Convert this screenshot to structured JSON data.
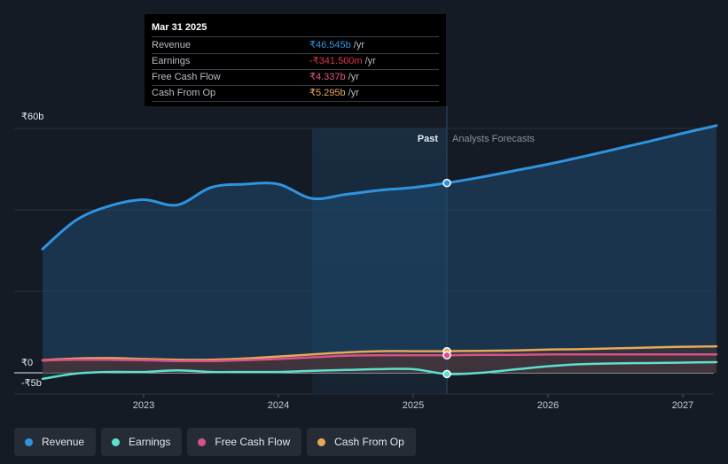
{
  "tooltip": {
    "date": "Mar 31 2025",
    "rows": [
      {
        "label": "Revenue",
        "value": "₹46.545b",
        "unit": "/yr",
        "color": "#2e94e0"
      },
      {
        "label": "Earnings",
        "value": "-₹341.500m",
        "unit": "/yr",
        "color": "#e0364f"
      },
      {
        "label": "Free Cash Flow",
        "value": "₹4.337b",
        "unit": "/yr",
        "color": "#e0578a"
      },
      {
        "label": "Cash From Op",
        "value": "₹5.295b",
        "unit": "/yr",
        "color": "#e8a85a"
      }
    ]
  },
  "labels": {
    "past": "Past",
    "forecast": "Analysts Forecasts"
  },
  "legend": [
    {
      "label": "Revenue",
      "color": "#2e94e0"
    },
    {
      "label": "Earnings",
      "color": "#5ce0d0"
    },
    {
      "label": "Free Cash Flow",
      "color": "#d9518a"
    },
    {
      "label": "Cash From Op",
      "color": "#e8a85a"
    }
  ],
  "chart_data": {
    "type": "line",
    "y_unit": "₹ billions",
    "ylim": [
      -5,
      60
    ],
    "y_ticks": [
      {
        "value": 60,
        "label": "₹60b"
      },
      {
        "value": 0,
        "label": "₹0"
      },
      {
        "value": -5,
        "label": "-₹5b"
      }
    ],
    "x_ticks": [
      {
        "value": 2023.0,
        "label": "2023"
      },
      {
        "value": 2024.0,
        "label": "2024"
      },
      {
        "value": 2025.0,
        "label": "2025"
      },
      {
        "value": 2026.0,
        "label": "2026"
      },
      {
        "value": 2027.0,
        "label": "2027"
      }
    ],
    "xlim": [
      2022.0,
      2027.25
    ],
    "past_start": 2024.25,
    "divider": 2025.25,
    "series": [
      {
        "name": "Revenue",
        "color": "#2e94e0",
        "points": [
          [
            2022.25,
            30.4
          ],
          [
            2022.5,
            37.5
          ],
          [
            2022.75,
            41.0
          ],
          [
            2023.0,
            42.5
          ],
          [
            2023.25,
            41.2
          ],
          [
            2023.5,
            45.5
          ],
          [
            2023.75,
            46.3
          ],
          [
            2024.0,
            46.3
          ],
          [
            2024.25,
            42.8
          ],
          [
            2024.5,
            43.8
          ],
          [
            2024.75,
            44.8
          ],
          [
            2025.0,
            45.5
          ],
          [
            2025.25,
            46.6
          ],
          [
            2025.5,
            48.0
          ],
          [
            2025.75,
            49.6
          ],
          [
            2026.0,
            51.2
          ],
          [
            2026.25,
            53.0
          ],
          [
            2026.5,
            54.9
          ],
          [
            2026.75,
            56.8
          ],
          [
            2027.0,
            58.8
          ],
          [
            2027.25,
            60.7
          ]
        ]
      },
      {
        "name": "Earnings",
        "color": "#5ce0d0",
        "points": [
          [
            2022.25,
            -1.5
          ],
          [
            2022.5,
            -0.2
          ],
          [
            2022.75,
            0.2
          ],
          [
            2023.0,
            0.2
          ],
          [
            2023.25,
            0.6
          ],
          [
            2023.5,
            0.2
          ],
          [
            2023.75,
            0.2
          ],
          [
            2024.0,
            0.2
          ],
          [
            2024.25,
            0.5
          ],
          [
            2024.5,
            0.7
          ],
          [
            2024.75,
            0.9
          ],
          [
            2025.0,
            0.9
          ],
          [
            2025.25,
            -0.3
          ],
          [
            2025.5,
            0.0
          ],
          [
            2025.75,
            0.8
          ],
          [
            2026.0,
            1.6
          ],
          [
            2026.25,
            2.1
          ],
          [
            2026.5,
            2.3
          ],
          [
            2026.75,
            2.4
          ],
          [
            2027.0,
            2.5
          ],
          [
            2027.25,
            2.6
          ]
        ]
      },
      {
        "name": "Free Cash Flow",
        "color": "#d9518a",
        "points": [
          [
            2022.25,
            3.0
          ],
          [
            2022.5,
            3.2
          ],
          [
            2022.75,
            3.2
          ],
          [
            2023.0,
            3.1
          ],
          [
            2023.25,
            2.9
          ],
          [
            2023.5,
            2.9
          ],
          [
            2023.75,
            3.1
          ],
          [
            2024.0,
            3.4
          ],
          [
            2024.25,
            3.8
          ],
          [
            2024.5,
            4.2
          ],
          [
            2024.75,
            4.3
          ],
          [
            2025.0,
            4.3
          ],
          [
            2025.25,
            4.3
          ],
          [
            2025.5,
            4.4
          ],
          [
            2025.75,
            4.4
          ],
          [
            2026.0,
            4.5
          ],
          [
            2026.25,
            4.5
          ],
          [
            2026.5,
            4.5
          ],
          [
            2026.75,
            4.5
          ],
          [
            2027.0,
            4.5
          ],
          [
            2027.25,
            4.5
          ]
        ]
      },
      {
        "name": "Cash From Op",
        "color": "#e8a85a",
        "points": [
          [
            2022.25,
            3.1
          ],
          [
            2022.5,
            3.5
          ],
          [
            2022.75,
            3.6
          ],
          [
            2023.0,
            3.4
          ],
          [
            2023.25,
            3.2
          ],
          [
            2023.5,
            3.2
          ],
          [
            2023.75,
            3.5
          ],
          [
            2024.0,
            4.0
          ],
          [
            2024.25,
            4.5
          ],
          [
            2024.5,
            5.0
          ],
          [
            2024.75,
            5.3
          ],
          [
            2025.0,
            5.3
          ],
          [
            2025.25,
            5.3
          ],
          [
            2025.5,
            5.4
          ],
          [
            2025.75,
            5.5
          ],
          [
            2026.0,
            5.7
          ],
          [
            2026.25,
            5.8
          ],
          [
            2026.5,
            6.0
          ],
          [
            2026.75,
            6.2
          ],
          [
            2027.0,
            6.4
          ],
          [
            2027.25,
            6.5
          ]
        ]
      }
    ]
  }
}
